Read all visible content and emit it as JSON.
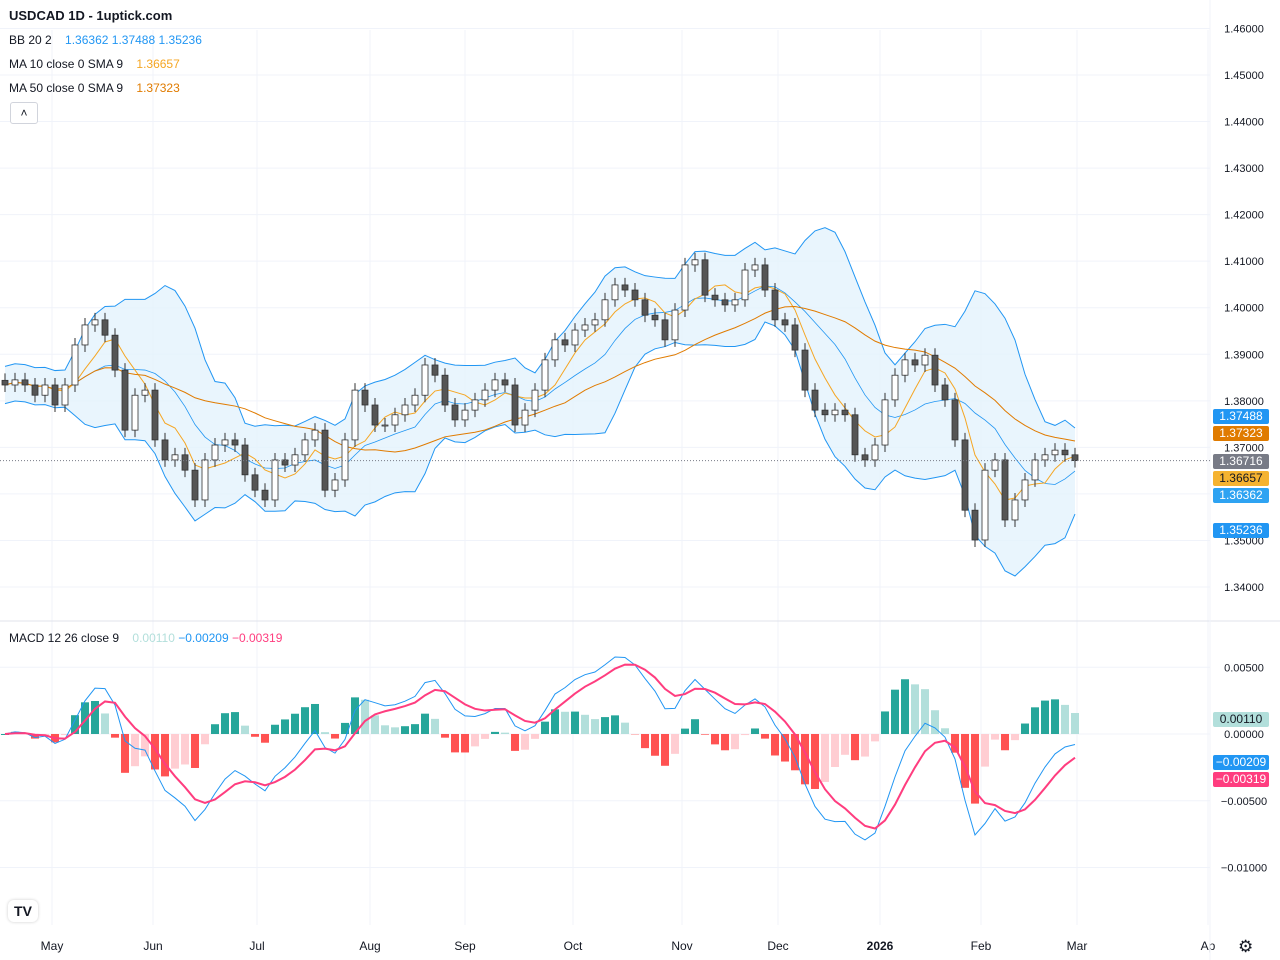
{
  "header": {
    "title": "USDCAD 1D - 1uptick.com"
  },
  "legend": {
    "bb": {
      "label": "BB 20 2",
      "basis": "1.36362",
      "upper": "1.37488",
      "lower": "1.35236"
    },
    "ma10": {
      "label": "MA 10 close 0 SMA 9",
      "value": "1.36657"
    },
    "ma50": {
      "label": "MA 50 close 0 SMA 9",
      "value": "1.37323"
    },
    "macd": {
      "label": "MACD 12 26 close 9",
      "hist": "0.00110",
      "macd": "−0.00209",
      "signal": "−0.00319"
    }
  },
  "price_tags": {
    "bb_upper": "1.37488",
    "ma50": "1.37323",
    "last": "1.36716",
    "ma10": "1.36657",
    "bb_basis": "1.36362",
    "bb_lower": "1.35236",
    "macd_hist": "0.00110",
    "macd": "−0.00209",
    "macd_signal": "−0.00319"
  },
  "colors": {
    "bb": "#2196f3",
    "bb_fill": "#e3f2fd",
    "ma10": "#f5a623",
    "ma50": "#e07b00",
    "last": "#787b86",
    "macd": "#2196f3",
    "signal": "#ff3d7f",
    "hist_up_strong": "#26a69a",
    "hist_up_weak": "#b2dfdb",
    "hist_down_strong": "#ff5252",
    "hist_down_weak": "#ffcdd2",
    "candle_down": "#555555",
    "candle_up": "#ffffff"
  },
  "icons": {
    "collapse": "chevron-up-icon",
    "settings": "gear-icon",
    "logo": "tradingview-logo"
  },
  "logo_text": "TV",
  "collapse_glyph": "˄",
  "gear_glyph": "⚙",
  "chart_data": {
    "type": "candlestick",
    "symbol": "USDCAD",
    "interval": "1D",
    "price_axis": {
      "ticks": [
        "1.46000",
        "1.45000",
        "1.44000",
        "1.43000",
        "1.42000",
        "1.41000",
        "1.40000",
        "1.39000",
        "1.38000",
        "1.37000",
        "1.36000",
        "1.35000",
        "1.34000"
      ],
      "range": [
        1.3355,
        1.4614
      ]
    },
    "macd_axis": {
      "ticks": [
        "0.00500",
        "0.00000",
        "−0.00500",
        "−0.01000"
      ],
      "range": [
        -0.0128,
        0.0075
      ]
    },
    "time_axis": {
      "ticks": [
        "May",
        "Jun",
        "Jul",
        "Aug",
        "Sep",
        "Oct",
        "Nov",
        "Dec",
        "2026",
        "Feb",
        "Mar",
        "Ap"
      ]
    },
    "closes": [
      1.3834,
      1.3845,
      1.3834,
      1.3812,
      1.3834,
      1.3791,
      1.3834,
      1.392,
      1.3963,
      1.3974,
      1.3941,
      1.3866,
      1.3737,
      1.3812,
      1.3823,
      1.3716,
      1.3673,
      1.3684,
      1.3651,
      1.3587,
      1.3673,
      1.3705,
      1.3716,
      1.3705,
      1.3641,
      1.3608,
      1.3587,
      1.3673,
      1.3662,
      1.3684,
      1.3716,
      1.3737,
      1.3608,
      1.363,
      1.3716,
      1.3823,
      1.3791,
      1.3748,
      1.3748,
      1.377,
      1.3791,
      1.3812,
      1.3877,
      1.3855,
      1.3791,
      1.3759,
      1.378,
      1.3802,
      1.3823,
      1.3845,
      1.3834,
      1.3748,
      1.378,
      1.3823,
      1.3888,
      1.3931,
      1.392,
      1.3952,
      1.3963,
      1.3974,
      1.4017,
      1.4049,
      1.4038,
      1.4017,
      1.3984,
      1.3974,
      1.3931,
      1.3995,
      1.4092,
      1.4103,
      1.4027,
      1.4017,
      1.4006,
      1.4017,
      1.4081,
      1.4092,
      1.4038,
      1.3974,
      1.3963,
      1.3909,
      1.3823,
      1.378,
      1.377,
      1.378,
      1.377,
      1.3684,
      1.3673,
      1.3705,
      1.3802,
      1.3855,
      1.3888,
      1.3877,
      1.3898,
      1.3834,
      1.3802,
      1.3716,
      1.3565,
      1.3501,
      1.3651,
      1.3673,
      1.3544,
      1.3587,
      1.363,
      1.3673,
      1.3684,
      1.3694,
      1.3684,
      1.36716
    ],
    "last_price": 1.36716,
    "indicators": [
      "BB 20 2",
      "MA 10",
      "MA 50",
      "MACD 12 26 9"
    ],
    "grid": true
  }
}
